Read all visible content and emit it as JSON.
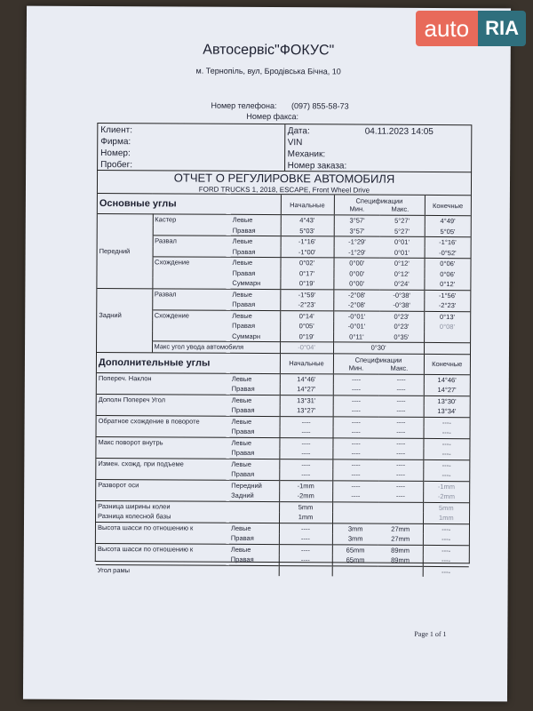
{
  "watermark": {
    "auto": "auto",
    "ria": "RIA"
  },
  "header": {
    "company": "Автосервіс\"ФОКУС\"",
    "address": "м. Тернопіль, вул, Бродівська Бічна, 10",
    "phone_label": "Номер телефона:",
    "phone": "(097) 855-58-73",
    "fax_label": "Номер факса:"
  },
  "info": {
    "left": [
      "Клиент:",
      "Фирма:",
      "Номер:",
      "Пробег:"
    ],
    "right": [
      "Дата:",
      "VIN",
      "Механик:",
      "Номер заказа:"
    ],
    "date": "04.11.2023  14:05"
  },
  "report": {
    "title": "ОТЧЕТ О РЕГУЛИРОВКЕ АВТОМОБИЛЯ",
    "vehicle": "FORD TRUCKS 1, 2018, ESCAPE, Front Wheel Drive"
  },
  "columns": {
    "initial": "Начальные",
    "spec": "Спецификации",
    "min": "Мин.",
    "max": "Макс.",
    "final": "Конечные"
  },
  "main": {
    "heading": "Основные углы",
    "rows": [
      {
        "group": "",
        "param": "Кастер",
        "side": "Левые",
        "initial": "4°43'",
        "min": "3°57'",
        "max": "5°27'",
        "final": "4°49'"
      },
      {
        "group": "",
        "param": "",
        "side": "Правая",
        "initial": "5°03'",
        "min": "3°57'",
        "max": "5°27'",
        "final": "5°05'"
      },
      {
        "group": "",
        "param": "Развал",
        "side": "Левые",
        "initial": "-1°16'",
        "min": "-1°29'",
        "max": "0°01'",
        "final": "-1°16'"
      },
      {
        "group": "Передний",
        "param": "",
        "side": "Правая",
        "initial": "-1°00'",
        "min": "-1°29'",
        "max": "0°01'",
        "final": "-0°52'"
      },
      {
        "group": "",
        "param": "Схождение",
        "side": "Левые",
        "initial": "0°02'",
        "min": "0°00'",
        "max": "0°12'",
        "final": "0°06'"
      },
      {
        "group": "",
        "param": "",
        "side": "Правая",
        "initial": "0°17'",
        "min": "0°00'",
        "max": "0°12'",
        "final": "0°06'"
      },
      {
        "group": "",
        "param": "",
        "side": "Суммарн",
        "initial": "0°19'",
        "min": "0°00'",
        "max": "0°24'",
        "final": "0°12'"
      },
      {
        "group": "",
        "param": "Развал",
        "side": "Левые",
        "initial": "-1°59'",
        "min": "-2°08'",
        "max": "-0°38'",
        "final": "-1°56'"
      },
      {
        "group": "",
        "param": "",
        "side": "Правая",
        "initial": "-2°23'",
        "min": "-2°08'",
        "max": "-0°38'",
        "final": "-2°23'"
      },
      {
        "group": "Задний",
        "param": "Схождение",
        "side": "Левые",
        "initial": "0°14'",
        "min": "-0°01'",
        "max": "0°23'",
        "final": "0°13'"
      },
      {
        "group": "",
        "param": "",
        "side": "Правая",
        "initial": "0°05'",
        "min": "-0°01'",
        "max": "0°23'",
        "final": "0°08'"
      },
      {
        "group": "",
        "param": "",
        "side": "Суммарн",
        "initial": "0°19'",
        "min": "0°11'",
        "max": "0°35'",
        "final": ""
      }
    ],
    "thrust": {
      "label": "Макс угол увода автомобиля",
      "initial": "-0°04'",
      "spec": "0°30'"
    }
  },
  "extra": {
    "heading": "Дополнительные углы",
    "rows": [
      {
        "param": "Попереч. Наклон",
        "side": "Левые",
        "initial": "14°46'",
        "min": "----",
        "max": "----",
        "final": "14°46'"
      },
      {
        "param": "",
        "side": "Правая",
        "initial": "14°27'",
        "min": "----",
        "max": "----",
        "final": "14°27'"
      },
      {
        "param": "Дополн Попереч Угол",
        "side": "Левые",
        "initial": "13°31'",
        "min": "----",
        "max": "----",
        "final": "13°30'"
      },
      {
        "param": "",
        "side": "Правая",
        "initial": "13°27'",
        "min": "----",
        "max": "----",
        "final": "13°34'"
      },
      {
        "param": "Обратное схождение в повороте",
        "side": "Левые",
        "initial": "----",
        "min": "----",
        "max": "----",
        "final": "----"
      },
      {
        "param": "",
        "side": "Правая",
        "initial": "----",
        "min": "----",
        "max": "----",
        "final": "----"
      },
      {
        "param": "Макс поворот внутрь",
        "side": "Левые",
        "initial": "----",
        "min": "----",
        "max": "----",
        "final": "----"
      },
      {
        "param": "",
        "side": "Правая",
        "initial": "----",
        "min": "----",
        "max": "----",
        "final": "----"
      },
      {
        "param": "Измен. схожд. при подъеме",
        "side": "Левые",
        "initial": "----",
        "min": "----",
        "max": "----",
        "final": "----"
      },
      {
        "param": "",
        "side": "Правая",
        "initial": "----",
        "min": "----",
        "max": "----",
        "final": "----"
      },
      {
        "param": "Разворот оси",
        "side": "Передний",
        "initial": "-1mm",
        "min": "----",
        "max": "----",
        "final": "-1mm"
      },
      {
        "param": "",
        "side": "Задний",
        "initial": "-2mm",
        "min": "----",
        "max": "----",
        "final": "-2mm"
      },
      {
        "param": "Разница ширины колеи",
        "side": "",
        "initial": "5mm",
        "min": "",
        "max": "",
        "final": "5mm"
      },
      {
        "param": "Разница колесной базы",
        "side": "",
        "initial": "1mm",
        "min": "",
        "max": "",
        "final": "1mm"
      },
      {
        "param": "Высота шасси по отношению к",
        "side": "Левые",
        "initial": "----",
        "min": "3mm",
        "max": "27mm",
        "final": "----"
      },
      {
        "param": "",
        "side": "Правая",
        "initial": "----",
        "min": "3mm",
        "max": "27mm",
        "final": "----"
      },
      {
        "param": "Высота шасси по отношению к",
        "side": "Левые",
        "initial": "----",
        "min": "65mm",
        "max": "89mm",
        "final": "----"
      },
      {
        "param": "",
        "side": "Правая",
        "initial": "----",
        "min": "65mm",
        "max": "89mm",
        "final": "----"
      },
      {
        "param": "Угол рамы",
        "side": "",
        "initial": "",
        "min": "",
        "max": "",
        "final": "----"
      }
    ]
  },
  "footer": {
    "page": "Page 1 of 1"
  }
}
